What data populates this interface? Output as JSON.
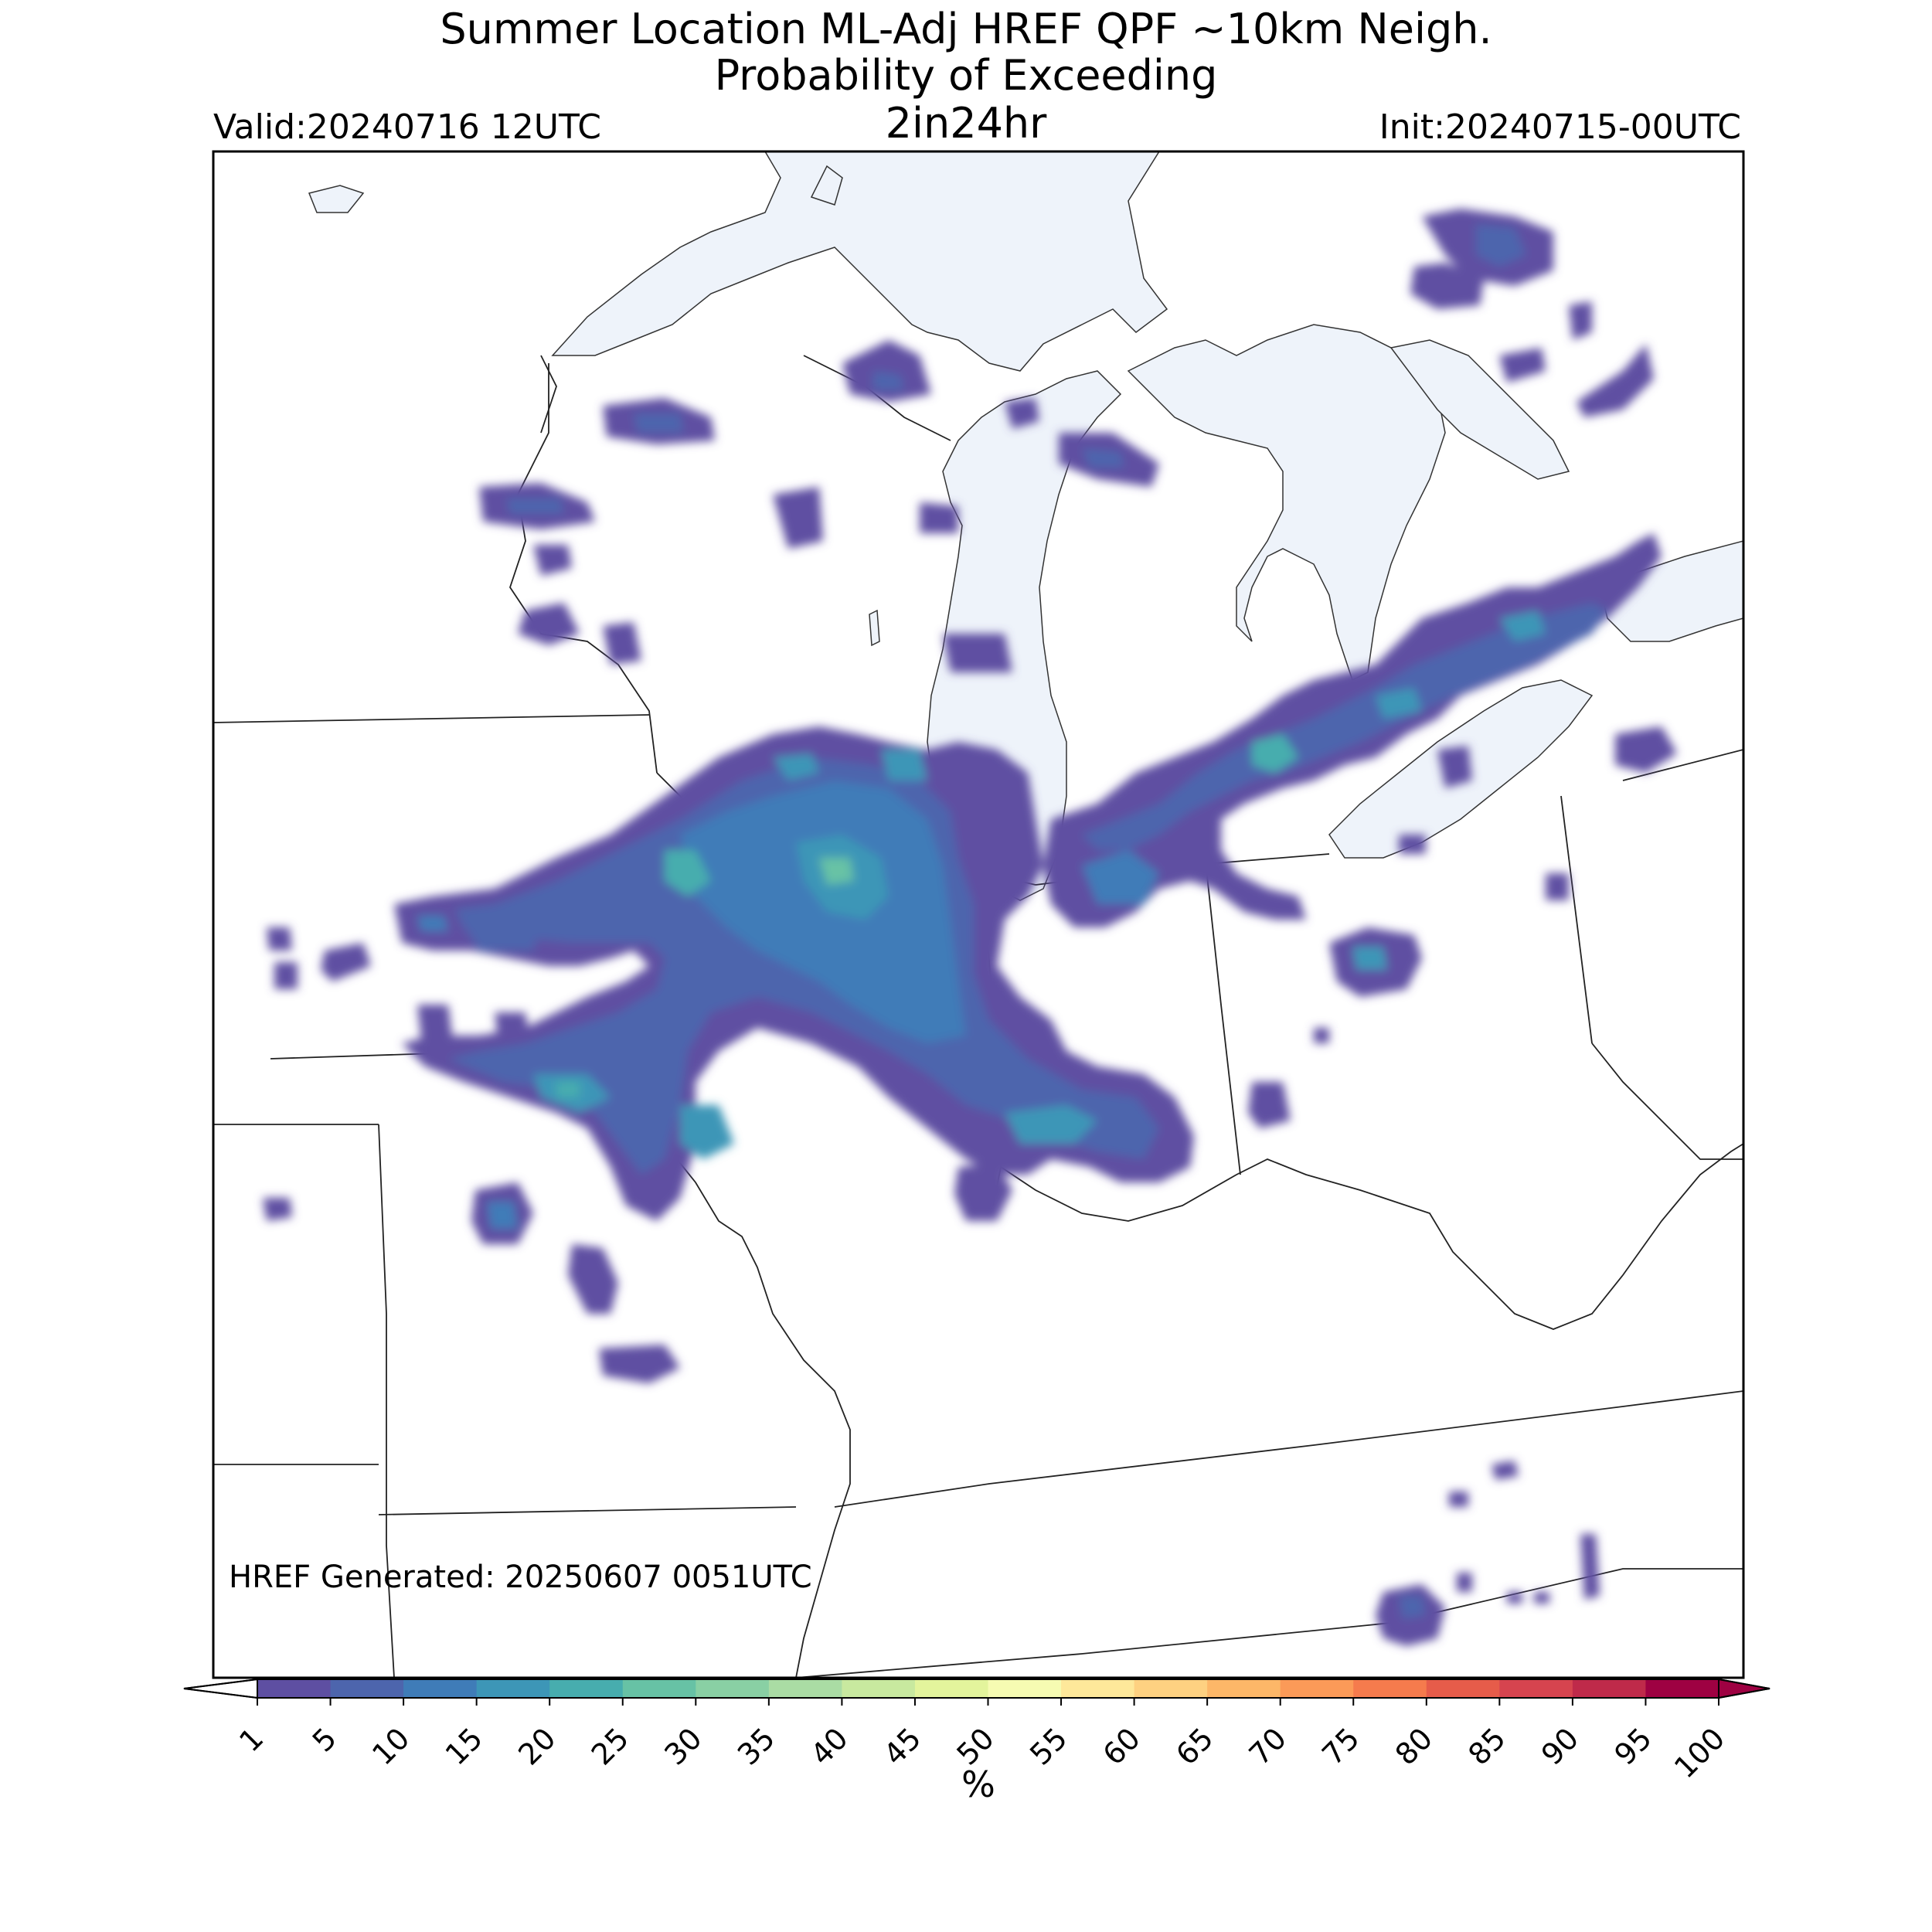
{
  "title": {
    "line1": "Summer Location ML-Adj HREF QPF ~10km Neigh.",
    "line2": "Probability of Exceeding",
    "line3": "2in24hr"
  },
  "valid": "Valid:20240716 12UTC",
  "init": "Init:20240715-00UTC",
  "generated": "HREF Generated: 20250607 0051UTC",
  "colorbar": {
    "unit": "%",
    "ticks": [
      "1",
      "5",
      "10",
      "15",
      "20",
      "25",
      "30",
      "35",
      "40",
      "45",
      "50",
      "55",
      "60",
      "65",
      "70",
      "75",
      "80",
      "85",
      "90",
      "95",
      "100"
    ],
    "colors": [
      "#5e4fa2",
      "#4d65ad",
      "#3f7cb8",
      "#3d96b7",
      "#47adae",
      "#67c2a5",
      "#89d0a4",
      "#aadca4",
      "#c8e99f",
      "#e3f49c",
      "#f6fbb2",
      "#fee89a",
      "#fed181",
      "#fdb768",
      "#fb9a58",
      "#f57b4d",
      "#e65c4a",
      "#d6444f",
      "#bf2a4a",
      "#9e0142"
    ],
    "under_color": "#ffffff",
    "over_color": "#9e0142"
  },
  "map": {
    "lake_color": "#eef3fa",
    "probability_blobs": [
      {
        "region": "northern Wisconsin",
        "level": 5
      },
      {
        "region": "northern Illinois",
        "level": 20
      },
      {
        "region": "central Iowa",
        "level": 25
      },
      {
        "region": "northern Indiana",
        "level": 15
      },
      {
        "region": "southern Michigan",
        "level": 15
      },
      {
        "region": "southern Ontario",
        "level": 15
      },
      {
        "region": "Ohio",
        "level": 10
      },
      {
        "region": "northern Missouri",
        "level": 20
      },
      {
        "region": "Tennessee",
        "level": 5
      }
    ]
  }
}
